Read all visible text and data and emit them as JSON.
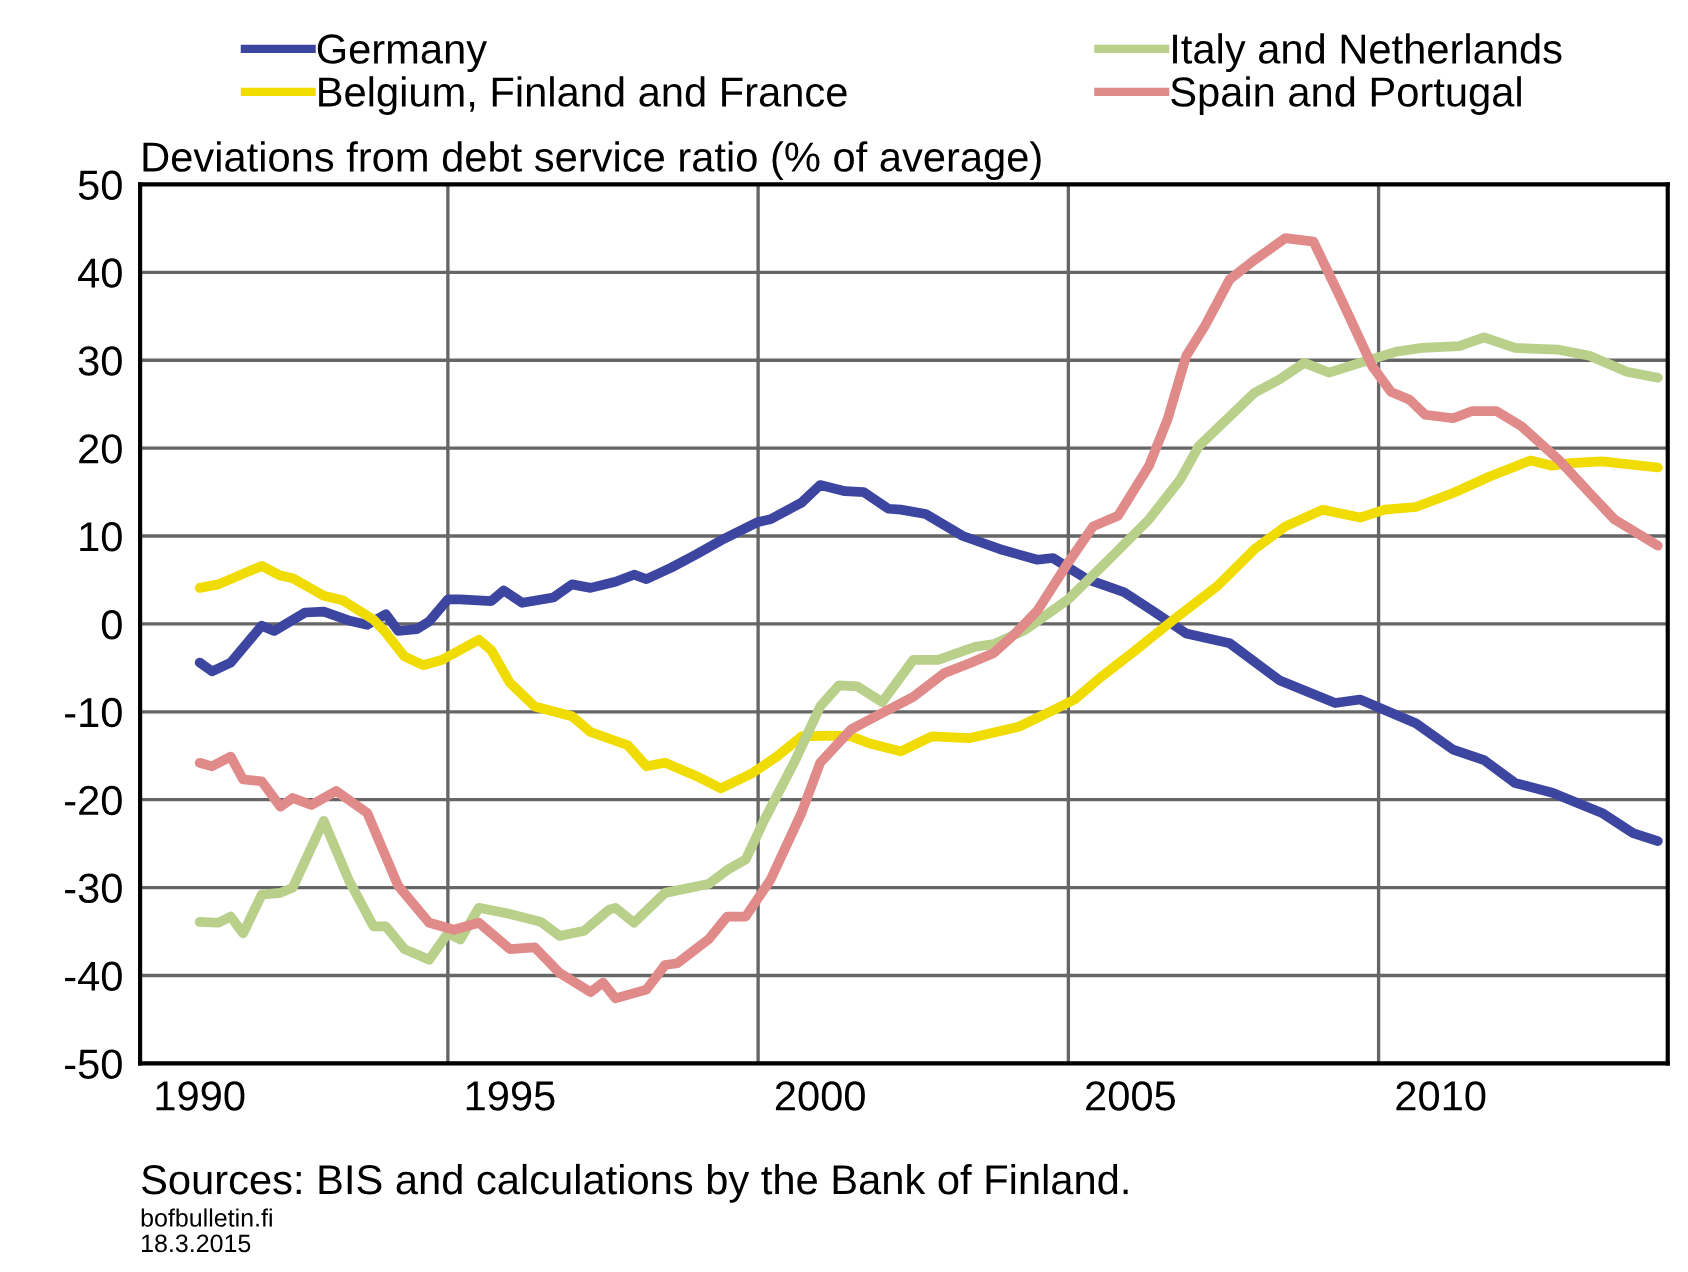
{
  "chart_data": {
    "type": "line",
    "ylabel": "Deviations from debt service ratio (% of average)",
    "xlim": [
      1989.04,
      2013.66
    ],
    "xticks": [
      1990,
      1995,
      2000,
      2005,
      2010
    ],
    "ylim": [
      -50,
      50
    ],
    "yticks": [
      -50,
      -40,
      -30,
      -20,
      -10,
      0,
      10,
      20,
      30,
      40,
      50
    ],
    "grid": "y",
    "legend": "top",
    "line_style": "solid",
    "marker": "none",
    "ref_lines": [
      {
        "axis": "x",
        "value": 1994,
        "color": "#666666"
      },
      {
        "axis": "x",
        "value": 1999,
        "color": "#666666"
      },
      {
        "axis": "x",
        "value": 2004,
        "color": "#666666"
      },
      {
        "axis": "x",
        "value": 2009,
        "color": "#666666"
      }
    ],
    "annotations": [
      "Sources: BIS and calculations by the Bank of Finland.",
      "bofbulletin.fi",
      "18.3.2015"
    ],
    "series": [
      {
        "name": "Germany",
        "color": "#3c46a0",
        "x": [
          1990.0,
          1990.2,
          1990.5,
          1991.0,
          1991.2,
          1991.7,
          1992.0,
          1992.4,
          1992.7,
          1993.0,
          1993.2,
          1993.5,
          1993.7,
          1994.0,
          1994.2,
          1994.7,
          1994.9,
          1995.2,
          1995.7,
          1996.0,
          1996.3,
          1996.7,
          1997.0,
          1997.2,
          1997.6,
          1998.0,
          1998.4,
          1999.0,
          1999.2,
          1999.7,
          2000.0,
          2000.4,
          2000.7,
          2001.1,
          2001.3,
          2001.7,
          2002.3,
          2002.9,
          2003.5,
          2003.75,
          2004.3,
          2004.9,
          2005.4,
          2005.9,
          2006.6,
          2007.4,
          2008.3,
          2008.7,
          2009.6,
          2010.2,
          2010.7,
          2011.2,
          2011.8,
          2012.6,
          2013.1,
          2013.5
        ],
        "values": [
          -4.4,
          -5.4,
          -4.4,
          -0.2,
          -0.8,
          1.3,
          1.4,
          0.4,
          -0.1,
          1.1,
          -0.8,
          -0.6,
          0.3,
          2.8,
          2.8,
          2.6,
          3.8,
          2.4,
          3.0,
          4.5,
          4.1,
          4.8,
          5.6,
          5.1,
          6.4,
          7.9,
          9.5,
          11.6,
          11.9,
          13.8,
          15.8,
          15.1,
          15.0,
          13.1,
          13.0,
          12.5,
          10.0,
          8.5,
          7.3,
          7.5,
          5.1,
          3.6,
          1.3,
          -1.1,
          -2.2,
          -6.4,
          -9.0,
          -8.6,
          -11.3,
          -14.3,
          -15.5,
          -18.1,
          -19.2,
          -21.5,
          -23.8,
          -24.7
        ]
      },
      {
        "name": "Belgium, Finland and France",
        "color": "#f0dc00",
        "x": [
          1990.0,
          1990.3,
          1991.0,
          1991.3,
          1991.5,
          1992.0,
          1992.3,
          1992.8,
          1993.0,
          1993.3,
          1993.6,
          1993.9,
          1994.5,
          1994.7,
          1995.0,
          1995.4,
          1996.0,
          1996.3,
          1996.9,
          1997.2,
          1997.5,
          1998.0,
          1998.4,
          1998.9,
          1999.3,
          1999.7,
          2000.2,
          2000.5,
          2000.8,
          2001.3,
          2001.8,
          2002.4,
          2003.2,
          2003.7,
          2004.1,
          2004.5,
          2005.1,
          2005.7,
          2006.4,
          2007.0,
          2007.5,
          2008.1,
          2008.7,
          2009.1,
          2009.6,
          2010.2,
          2010.8,
          2011.45,
          2011.8,
          2012.1,
          2012.6,
          2013.5
        ],
        "values": [
          4.1,
          4.5,
          6.6,
          5.5,
          5.2,
          3.2,
          2.7,
          0.5,
          -1.0,
          -3.7,
          -4.7,
          -4.1,
          -1.8,
          -3.0,
          -6.7,
          -9.4,
          -10.5,
          -12.3,
          -13.8,
          -16.2,
          -15.8,
          -17.3,
          -18.7,
          -17.0,
          -15.1,
          -12.8,
          -12.7,
          -12.8,
          -13.6,
          -14.5,
          -12.8,
          -13.0,
          -11.7,
          -10.0,
          -8.6,
          -6.2,
          -2.9,
          0.5,
          4.3,
          8.5,
          11.1,
          13.0,
          12.1,
          13.0,
          13.3,
          14.9,
          16.8,
          18.6,
          18.0,
          18.3,
          18.5,
          17.8
        ]
      },
      {
        "name": "Italy and Netherlands",
        "color": "#b8d08a",
        "x": [
          1990.0,
          1990.3,
          1990.5,
          1990.7,
          1991.0,
          1991.3,
          1991.5,
          1992.0,
          1992.4,
          1992.8,
          1993.0,
          1993.3,
          1993.7,
          1994.0,
          1994.2,
          1994.5,
          1995.0,
          1995.5,
          1995.8,
          1996.2,
          1996.6,
          1996.7,
          1997.0,
          1997.5,
          1998.2,
          1998.5,
          1998.8,
          1999.1,
          1999.6,
          2000.0,
          2000.3,
          2000.6,
          2001.0,
          2001.5,
          2001.9,
          2002.5,
          2002.8,
          2003.3,
          2004.0,
          2004.65,
          2005.3,
          2005.8,
          2006.1,
          2007.0,
          2007.4,
          2007.8,
          2008.2,
          2008.7,
          2009.3,
          2009.7,
          2010.3,
          2010.7,
          2011.2,
          2011.9,
          2012.4,
          2013.0,
          2013.5
        ],
        "values": [
          -33.9,
          -34.0,
          -33.3,
          -35.2,
          -30.8,
          -30.6,
          -30.0,
          -22.4,
          -29.1,
          -34.4,
          -34.4,
          -37.0,
          -38.2,
          -35.2,
          -35.9,
          -32.3,
          -33.0,
          -33.9,
          -35.5,
          -34.9,
          -32.5,
          -32.3,
          -34.0,
          -30.6,
          -29.6,
          -28.0,
          -26.8,
          -22.3,
          -15.5,
          -9.4,
          -7.0,
          -7.1,
          -8.9,
          -4.1,
          -4.1,
          -2.6,
          -2.3,
          -0.7,
          2.8,
          7.3,
          11.9,
          16.4,
          20.2,
          26.3,
          27.8,
          29.7,
          28.6,
          29.7,
          31.0,
          31.4,
          31.6,
          32.6,
          31.4,
          31.2,
          30.5,
          28.7,
          28.0
        ]
      },
      {
        "name": "Spain and Portugal",
        "color": "#e08a8a",
        "x": [
          1990.0,
          1990.2,
          1990.5,
          1990.7,
          1991.0,
          1991.3,
          1991.5,
          1991.8,
          1992.2,
          1992.7,
          1993.2,
          1993.7,
          1994.1,
          1994.5,
          1995.0,
          1995.4,
          1995.8,
          1996.3,
          1996.5,
          1996.7,
          1997.2,
          1997.5,
          1997.7,
          1998.2,
          1998.5,
          1998.8,
          1999.2,
          1999.7,
          2000.0,
          2000.5,
          2000.9,
          2001.5,
          2002.0,
          2002.4,
          2002.8,
          2003.1,
          2003.5,
          2004.0,
          2004.4,
          2004.8,
          2005.3,
          2005.6,
          2005.9,
          2006.2,
          2006.6,
          2007.0,
          2007.5,
          2007.95,
          2008.4,
          2008.9,
          2009.2,
          2009.5,
          2009.75,
          2010.2,
          2010.5,
          2010.9,
          2011.3,
          2011.9,
          2012.4,
          2012.8,
          2013.5
        ],
        "values": [
          -15.8,
          -16.2,
          -15.1,
          -17.7,
          -17.9,
          -20.8,
          -19.8,
          -20.6,
          -19.0,
          -21.5,
          -29.8,
          -34.0,
          -34.8,
          -34.0,
          -37.0,
          -36.8,
          -39.7,
          -41.9,
          -40.8,
          -42.6,
          -41.6,
          -38.8,
          -38.6,
          -35.9,
          -33.3,
          -33.3,
          -29.1,
          -21.5,
          -15.8,
          -12.0,
          -10.5,
          -8.3,
          -5.6,
          -4.5,
          -3.3,
          -1.4,
          1.5,
          7.0,
          11.1,
          12.3,
          18.0,
          23.3,
          30.5,
          33.9,
          39.2,
          41.4,
          43.9,
          43.5,
          36.9,
          29.3,
          26.4,
          25.5,
          23.8,
          23.4,
          24.2,
          24.2,
          22.5,
          18.7,
          14.9,
          11.9,
          8.9
        ]
      }
    ]
  }
}
